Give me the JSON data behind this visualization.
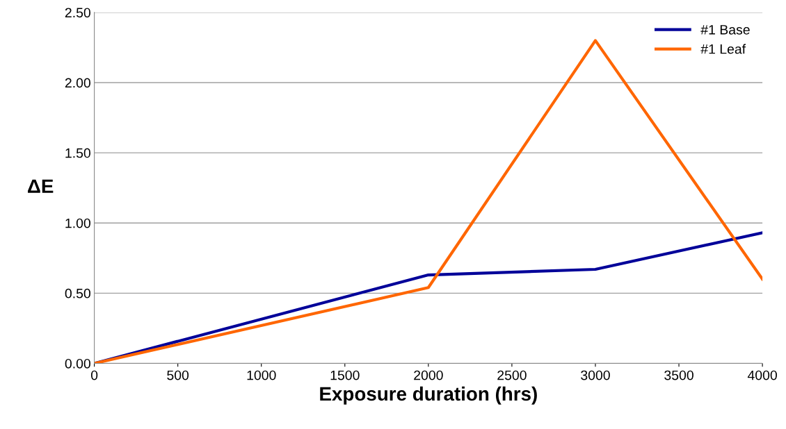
{
  "chart_data": {
    "type": "line",
    "xlabel": "Exposure duration (hrs)",
    "ylabel": "ΔE",
    "x": [
      0,
      2000,
      3000,
      4000
    ],
    "series": [
      {
        "name": "#1 Base",
        "color": "#000099",
        "values": [
          0,
          0.63,
          0.67,
          0.93
        ]
      },
      {
        "name": "#1 Leaf",
        "color": "#ff6600",
        "values": [
          0,
          0.54,
          2.3,
          0.6
        ]
      }
    ],
    "xlim": [
      0,
      4000
    ],
    "xticks": [
      0,
      500,
      1000,
      1500,
      2000,
      2500,
      3000,
      3500,
      4000
    ],
    "ylim": [
      0,
      2.5
    ],
    "yticks": [
      {
        "value": 0,
        "label": "0.00"
      },
      {
        "value": 0.5,
        "label": "0.50"
      },
      {
        "value": 1,
        "label": "1.00"
      },
      {
        "value": 1.5,
        "label": "1.50"
      },
      {
        "value": 2,
        "label": "2.00"
      },
      {
        "value": 2.5,
        "label": "2.50"
      }
    ],
    "grid": "y",
    "legend": "top right",
    "marker": "none",
    "line_style": "solid"
  }
}
